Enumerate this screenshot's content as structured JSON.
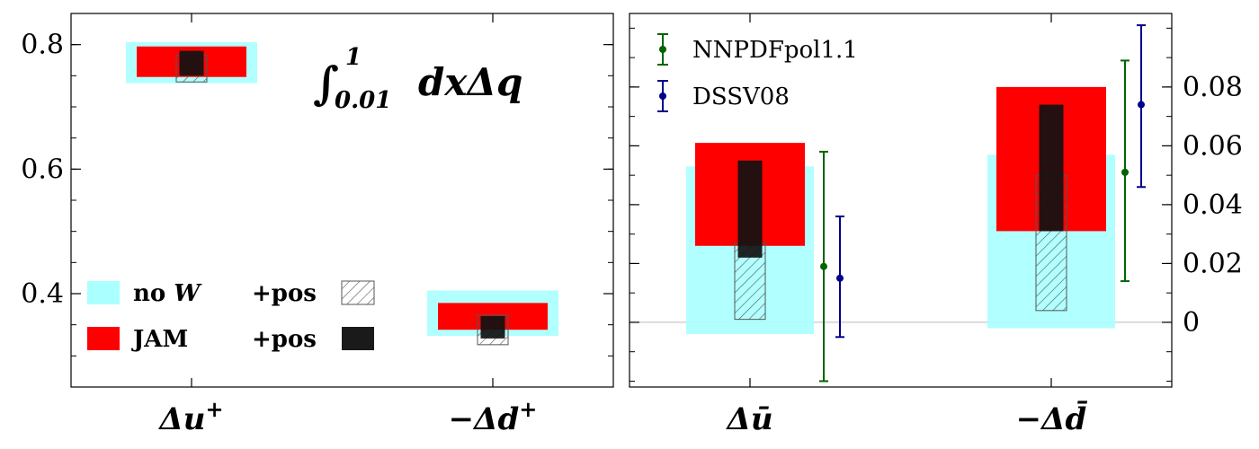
{
  "chart_data": [
    {
      "type": "bar",
      "panel": "left",
      "annotation": {
        "integral_sign": "∫",
        "upper": "1",
        "lower": "0.01",
        "body": "dxΔq"
      },
      "ylim": [
        0.25,
        0.85
      ],
      "yticks": [
        "0.4",
        "0.6",
        "0.8"
      ],
      "categories": [
        {
          "main": "Δu",
          "sup": "+"
        },
        {
          "main": "−Δd",
          "sup": "+"
        }
      ],
      "series": [
        {
          "key": "noW",
          "name": "no W",
          "color": "#aaffff",
          "ranges": [
            [
              0.738,
              0.804
            ],
            [
              0.332,
              0.405
            ]
          ]
        },
        {
          "key": "jam",
          "name": "JAM",
          "color": "#ff0000",
          "ranges": [
            [
              0.748,
              0.797
            ],
            [
              0.342,
              0.385
            ]
          ]
        },
        {
          "key": "noWpos",
          "name": "+pos",
          "color": "hatch",
          "ranges": [
            [
              0.74,
              0.783
            ],
            [
              0.318,
              0.366
            ]
          ]
        },
        {
          "key": "jampos",
          "name": "+pos",
          "color": "#111111",
          "ranges": [
            [
              0.75,
              0.79
            ],
            [
              0.328,
              0.364
            ]
          ]
        }
      ],
      "legend": {
        "nowLabel": "no ",
        "nowSym": "W",
        "jamLabel": "JAM",
        "posLabel1": "+pos",
        "posLabel2": "+pos"
      }
    },
    {
      "type": "bar",
      "panel": "right",
      "ylim": [
        -0.022,
        0.105
      ],
      "yticks": [
        "0",
        "0.02",
        "0.04",
        "0.06",
        "0.08"
      ],
      "categories": [
        {
          "main": "Δū",
          "sup": ""
        },
        {
          "main": "−Δd̄",
          "sup": ""
        }
      ],
      "series": [
        {
          "key": "noW",
          "color": "#aaffff",
          "ranges": [
            [
              -0.004,
              0.053
            ],
            [
              -0.002,
              0.057
            ]
          ]
        },
        {
          "key": "jam",
          "color": "#ff0000",
          "ranges": [
            [
              0.026,
              0.061
            ],
            [
              0.031,
              0.08
            ]
          ]
        },
        {
          "key": "noWpos",
          "color": "hatch",
          "ranges": [
            [
              0.001,
              0.027
            ],
            [
              0.004,
              0.05
            ]
          ]
        },
        {
          "key": "jampos",
          "color": "#111111",
          "ranges": [
            [
              0.022,
              0.055
            ],
            [
              0.031,
              0.074
            ]
          ]
        }
      ],
      "errorbars": [
        {
          "name": "NNPDFpol1.1",
          "color": "#006400",
          "points": [
            {
              "cat": 0,
              "y": 0.019,
              "lo": -0.02,
              "hi": 0.058
            },
            {
              "cat": 1,
              "y": 0.051,
              "lo": 0.014,
              "hi": 0.089
            }
          ]
        },
        {
          "name": "DSSV08",
          "color": "#00008b",
          "points": [
            {
              "cat": 0,
              "y": 0.015,
              "lo": -0.005,
              "hi": 0.036
            },
            {
              "cat": 1,
              "y": 0.074,
              "lo": 0.046,
              "hi": 0.101
            }
          ]
        }
      ]
    }
  ]
}
